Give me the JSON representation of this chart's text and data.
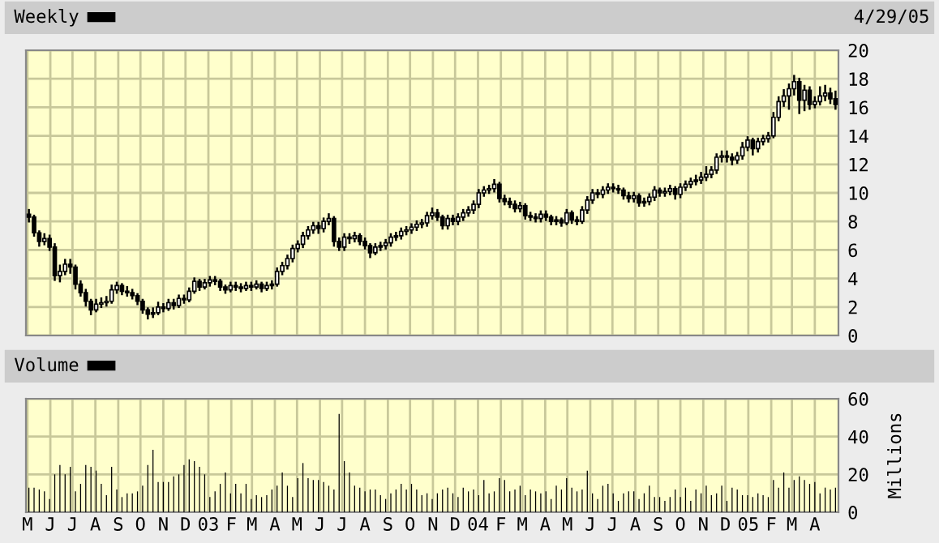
{
  "chart_data": [
    {
      "type": "candlestick",
      "title": "Weekly",
      "annotations": [
        "4/29/05"
      ],
      "color": "#000000",
      "grid": true,
      "tick_labels": "y",
      "xlim": [
        "2002-04-29",
        "2005-05-03"
      ],
      "ylim": [
        0,
        20
      ],
      "yticks": [
        0,
        2,
        4,
        6,
        8,
        10,
        12,
        14,
        16,
        18,
        20
      ],
      "xticks": [
        {
          "value": "2002-05-01",
          "label": null
        },
        {
          "value": "2002-06-01",
          "label": null
        },
        {
          "value": "2002-07-01",
          "label": null
        },
        {
          "value": "2002-08-01",
          "label": null
        },
        {
          "value": "2002-09-01",
          "label": null
        },
        {
          "value": "2002-10-01",
          "label": null
        },
        {
          "value": "2002-11-01",
          "label": null
        },
        {
          "value": "2002-12-01",
          "label": null
        },
        {
          "value": "2003-01-01",
          "label": null
        },
        {
          "value": "2003-02-01",
          "label": null
        },
        {
          "value": "2003-03-01",
          "label": null
        },
        {
          "value": "2003-04-01",
          "label": null
        },
        {
          "value": "2003-05-01",
          "label": null
        },
        {
          "value": "2003-06-01",
          "label": null
        },
        {
          "value": "2003-07-01",
          "label": null
        },
        {
          "value": "2003-08-01",
          "label": null
        },
        {
          "value": "2003-09-01",
          "label": null
        },
        {
          "value": "2003-10-01",
          "label": null
        },
        {
          "value": "2003-11-01",
          "label": null
        },
        {
          "value": "2003-12-01",
          "label": null
        },
        {
          "value": "2004-01-01",
          "label": null
        },
        {
          "value": "2004-02-01",
          "label": null
        },
        {
          "value": "2004-03-01",
          "label": null
        },
        {
          "value": "2004-04-01",
          "label": null
        },
        {
          "value": "2004-05-01",
          "label": null
        },
        {
          "value": "2004-06-01",
          "label": null
        },
        {
          "value": "2004-07-01",
          "label": null
        },
        {
          "value": "2004-08-01",
          "label": null
        },
        {
          "value": "2004-09-01",
          "label": null
        },
        {
          "value": "2004-10-01",
          "label": null
        },
        {
          "value": "2004-11-01",
          "label": null
        },
        {
          "value": "2004-12-01",
          "label": null
        },
        {
          "value": "2005-01-01",
          "label": null
        },
        {
          "value": "2005-02-01",
          "label": null
        },
        {
          "value": "2005-03-01",
          "label": null
        },
        {
          "value": "2005-04-01",
          "label": null
        }
      ],
      "x": [
        "2002-05-03",
        "2002-05-10",
        "2002-05-17",
        "2002-05-24",
        "2002-05-31",
        "2002-06-07",
        "2002-06-14",
        "2002-06-21",
        "2002-06-28",
        "2002-07-05",
        "2002-07-12",
        "2002-07-19",
        "2002-07-26",
        "2002-08-02",
        "2002-08-09",
        "2002-08-16",
        "2002-08-23",
        "2002-08-30",
        "2002-09-06",
        "2002-09-13",
        "2002-09-20",
        "2002-09-27",
        "2002-10-04",
        "2002-10-11",
        "2002-10-18",
        "2002-10-25",
        "2002-11-01",
        "2002-11-08",
        "2002-11-15",
        "2002-11-22",
        "2002-11-29",
        "2002-12-06",
        "2002-12-13",
        "2002-12-20",
        "2002-12-27",
        "2003-01-03",
        "2003-01-10",
        "2003-01-17",
        "2003-01-24",
        "2003-01-31",
        "2003-02-07",
        "2003-02-14",
        "2003-02-21",
        "2003-02-28",
        "2003-03-07",
        "2003-03-14",
        "2003-03-21",
        "2003-03-28",
        "2003-04-04",
        "2003-04-11",
        "2003-04-18",
        "2003-04-25",
        "2003-05-02",
        "2003-05-09",
        "2003-05-16",
        "2003-05-23",
        "2003-05-30",
        "2003-06-06",
        "2003-06-13",
        "2003-06-20",
        "2003-06-27",
        "2003-07-04",
        "2003-07-11",
        "2003-07-18",
        "2003-07-25",
        "2003-08-01",
        "2003-08-08",
        "2003-08-15",
        "2003-08-22",
        "2003-08-29",
        "2003-09-05",
        "2003-09-12",
        "2003-09-19",
        "2003-09-26",
        "2003-10-03",
        "2003-10-10",
        "2003-10-17",
        "2003-10-24",
        "2003-10-31",
        "2003-11-07",
        "2003-11-14",
        "2003-11-21",
        "2003-11-28",
        "2003-12-05",
        "2003-12-12",
        "2003-12-19",
        "2003-12-26",
        "2004-01-02",
        "2004-01-09",
        "2004-01-16",
        "2004-01-23",
        "2004-01-30",
        "2004-02-06",
        "2004-02-13",
        "2004-02-20",
        "2004-02-27",
        "2004-03-05",
        "2004-03-12",
        "2004-03-19",
        "2004-03-26",
        "2004-04-02",
        "2004-04-09",
        "2004-04-16",
        "2004-04-23",
        "2004-04-30",
        "2004-05-07",
        "2004-05-14",
        "2004-05-21",
        "2004-05-28",
        "2004-06-04",
        "2004-06-11",
        "2004-06-18",
        "2004-06-25",
        "2004-07-02",
        "2004-07-09",
        "2004-07-16",
        "2004-07-23",
        "2004-07-30",
        "2004-08-06",
        "2004-08-13",
        "2004-08-20",
        "2004-08-27",
        "2004-09-03",
        "2004-09-10",
        "2004-09-17",
        "2004-09-24",
        "2004-10-01",
        "2004-10-08",
        "2004-10-15",
        "2004-10-22",
        "2004-10-29",
        "2004-11-05",
        "2004-11-12",
        "2004-11-19",
        "2004-11-26",
        "2004-12-03",
        "2004-12-10",
        "2004-12-17",
        "2004-12-24",
        "2004-12-31",
        "2005-01-07",
        "2005-01-14",
        "2005-01-21",
        "2005-01-28",
        "2005-02-04",
        "2005-02-11",
        "2005-02-18",
        "2005-02-25",
        "2005-03-04",
        "2005-03-11",
        "2005-03-18",
        "2005-03-25",
        "2005-04-01",
        "2005-04-08",
        "2005-04-15",
        "2005-04-22",
        "2005-04-29"
      ],
      "ohlc": [
        [
          8.5,
          8.8,
          8.0,
          8.3
        ],
        [
          8.3,
          8.4,
          7.0,
          7.2
        ],
        [
          7.2,
          7.3,
          6.3,
          6.6
        ],
        [
          6.6,
          7.1,
          6.4,
          6.8
        ],
        [
          6.8,
          7.0,
          6.0,
          6.2
        ],
        [
          6.2,
          6.4,
          3.9,
          4.2
        ],
        [
          4.2,
          4.9,
          3.8,
          4.5
        ],
        [
          4.5,
          5.3,
          4.3,
          5.0
        ],
        [
          5.0,
          5.3,
          4.4,
          4.8
        ],
        [
          4.8,
          4.9,
          3.3,
          3.6
        ],
        [
          3.6,
          3.8,
          2.8,
          3.0
        ],
        [
          3.0,
          3.2,
          2.1,
          2.4
        ],
        [
          2.4,
          2.5,
          1.5,
          1.8
        ],
        [
          1.8,
          2.5,
          1.7,
          2.2
        ],
        [
          2.2,
          2.6,
          2.0,
          2.3
        ],
        [
          2.3,
          2.7,
          2.1,
          2.4
        ],
        [
          2.4,
          3.5,
          2.3,
          3.2
        ],
        [
          3.2,
          3.7,
          3.0,
          3.5
        ],
        [
          3.5,
          3.6,
          2.9,
          3.1
        ],
        [
          3.1,
          3.4,
          2.8,
          3.0
        ],
        [
          3.0,
          3.2,
          2.6,
          2.8
        ],
        [
          2.8,
          2.9,
          2.2,
          2.4
        ],
        [
          2.4,
          2.5,
          1.6,
          1.8
        ],
        [
          1.8,
          1.9,
          1.2,
          1.5
        ],
        [
          1.5,
          1.9,
          1.3,
          1.6
        ],
        [
          1.6,
          2.3,
          1.5,
          2.0
        ],
        [
          2.0,
          2.2,
          1.7,
          1.9
        ],
        [
          1.9,
          2.5,
          1.8,
          2.3
        ],
        [
          2.3,
          2.5,
          1.9,
          2.1
        ],
        [
          2.1,
          2.8,
          2.0,
          2.6
        ],
        [
          2.6,
          2.8,
          2.3,
          2.5
        ],
        [
          2.5,
          3.3,
          2.4,
          3.1
        ],
        [
          3.1,
          4.0,
          3.0,
          3.8
        ],
        [
          3.8,
          3.9,
          3.2,
          3.4
        ],
        [
          3.4,
          3.9,
          3.3,
          3.7
        ],
        [
          3.7,
          4.1,
          3.5,
          3.9
        ],
        [
          3.9,
          4.1,
          3.6,
          3.8
        ],
        [
          3.8,
          3.9,
          3.2,
          3.4
        ],
        [
          3.4,
          3.5,
          3.0,
          3.2
        ],
        [
          3.2,
          3.7,
          3.1,
          3.5
        ],
        [
          3.5,
          3.7,
          3.2,
          3.4
        ],
        [
          3.4,
          3.6,
          3.1,
          3.3
        ],
        [
          3.3,
          3.7,
          3.2,
          3.5
        ],
        [
          3.5,
          3.7,
          3.2,
          3.4
        ],
        [
          3.4,
          3.8,
          3.3,
          3.6
        ],
        [
          3.6,
          3.7,
          3.1,
          3.3
        ],
        [
          3.3,
          3.7,
          3.2,
          3.5
        ],
        [
          3.5,
          3.8,
          3.3,
          3.6
        ],
        [
          3.6,
          4.7,
          3.5,
          4.5
        ],
        [
          4.5,
          5.1,
          4.3,
          4.9
        ],
        [
          4.9,
          5.6,
          4.7,
          5.4
        ],
        [
          5.4,
          6.3,
          5.2,
          6.1
        ],
        [
          6.1,
          6.6,
          5.9,
          6.4
        ],
        [
          6.4,
          7.2,
          6.2,
          7.0
        ],
        [
          7.0,
          7.6,
          6.8,
          7.4
        ],
        [
          7.4,
          7.9,
          7.2,
          7.7
        ],
        [
          7.7,
          7.9,
          7.2,
          7.5
        ],
        [
          7.5,
          8.2,
          7.3,
          8.0
        ],
        [
          8.0,
          8.5,
          7.8,
          8.2
        ],
        [
          8.2,
          8.3,
          6.3,
          6.6
        ],
        [
          6.6,
          6.8,
          6.0,
          6.2
        ],
        [
          6.2,
          7.1,
          6.0,
          6.9
        ],
        [
          6.9,
          7.1,
          6.5,
          6.8
        ],
        [
          6.8,
          7.2,
          6.6,
          7.0
        ],
        [
          7.0,
          7.1,
          6.4,
          6.6
        ],
        [
          6.6,
          6.8,
          6.1,
          6.3
        ],
        [
          6.3,
          6.4,
          5.5,
          5.8
        ],
        [
          5.8,
          6.4,
          5.7,
          6.2
        ],
        [
          6.2,
          6.5,
          6.0,
          6.3
        ],
        [
          6.3,
          6.7,
          6.1,
          6.5
        ],
        [
          6.5,
          7.1,
          6.3,
          6.9
        ],
        [
          6.9,
          7.2,
          6.7,
          7.0
        ],
        [
          7.0,
          7.5,
          6.8,
          7.3
        ],
        [
          7.3,
          7.6,
          7.1,
          7.4
        ],
        [
          7.4,
          7.8,
          7.2,
          7.6
        ],
        [
          7.6,
          8.0,
          7.4,
          7.8
        ],
        [
          7.8,
          8.1,
          7.6,
          7.9
        ],
        [
          7.9,
          8.6,
          7.7,
          8.4
        ],
        [
          8.4,
          8.9,
          8.2,
          8.6
        ],
        [
          8.6,
          8.8,
          8.1,
          8.3
        ],
        [
          8.3,
          8.4,
          7.5,
          7.7
        ],
        [
          7.7,
          8.4,
          7.5,
          8.2
        ],
        [
          8.2,
          8.4,
          7.8,
          8.0
        ],
        [
          8.0,
          8.5,
          7.8,
          8.3
        ],
        [
          8.3,
          8.8,
          8.1,
          8.6
        ],
        [
          8.6,
          9.0,
          8.4,
          8.8
        ],
        [
          8.8,
          9.4,
          8.6,
          9.2
        ],
        [
          9.2,
          10.2,
          9.0,
          10.0
        ],
        [
          10.0,
          10.4,
          9.8,
          10.2
        ],
        [
          10.2,
          10.5,
          10.0,
          10.3
        ],
        [
          10.3,
          10.9,
          10.1,
          10.6
        ],
        [
          10.6,
          10.7,
          9.4,
          9.6
        ],
        [
          9.6,
          9.8,
          9.2,
          9.4
        ],
        [
          9.4,
          9.6,
          9.0,
          9.2
        ],
        [
          9.2,
          9.4,
          8.7,
          8.9
        ],
        [
          8.9,
          9.3,
          8.7,
          9.1
        ],
        [
          9.1,
          9.2,
          8.2,
          8.4
        ],
        [
          8.4,
          8.6,
          8.1,
          8.3
        ],
        [
          8.3,
          8.5,
          8.0,
          8.2
        ],
        [
          8.2,
          8.7,
          8.0,
          8.5
        ],
        [
          8.5,
          8.7,
          8.1,
          8.3
        ],
        [
          8.3,
          8.4,
          7.8,
          8.0
        ],
        [
          8.0,
          8.3,
          7.8,
          8.1
        ],
        [
          8.1,
          8.2,
          7.7,
          7.9
        ],
        [
          7.9,
          8.8,
          7.8,
          8.6
        ],
        [
          8.6,
          8.7,
          7.9,
          8.1
        ],
        [
          8.1,
          8.3,
          7.8,
          8.0
        ],
        [
          8.0,
          9.0,
          7.9,
          8.8
        ],
        [
          8.8,
          9.7,
          8.6,
          9.5
        ],
        [
          9.5,
          10.2,
          9.3,
          10.0
        ],
        [
          10.0,
          10.2,
          9.7,
          9.9
        ],
        [
          9.9,
          10.4,
          9.7,
          10.2
        ],
        [
          10.2,
          10.6,
          10.0,
          10.4
        ],
        [
          10.4,
          10.6,
          10.1,
          10.3
        ],
        [
          10.3,
          10.5,
          10.0,
          10.2
        ],
        [
          10.2,
          10.3,
          9.6,
          9.8
        ],
        [
          9.8,
          10.0,
          9.4,
          9.6
        ],
        [
          9.6,
          10.0,
          9.4,
          9.8
        ],
        [
          9.8,
          9.9,
          9.1,
          9.3
        ],
        [
          9.3,
          9.6,
          9.1,
          9.4
        ],
        [
          9.4,
          9.9,
          9.2,
          9.7
        ],
        [
          9.7,
          10.4,
          9.5,
          10.2
        ],
        [
          10.2,
          10.3,
          9.8,
          10.0
        ],
        [
          10.0,
          10.3,
          9.8,
          10.1
        ],
        [
          10.1,
          10.5,
          9.9,
          10.3
        ],
        [
          10.3,
          10.4,
          9.6,
          9.9
        ],
        [
          9.9,
          10.6,
          9.7,
          10.4
        ],
        [
          10.4,
          10.8,
          10.2,
          10.6
        ],
        [
          10.6,
          11.0,
          10.4,
          10.8
        ],
        [
          10.8,
          11.2,
          10.6,
          10.9
        ],
        [
          10.9,
          11.4,
          10.7,
          11.1
        ],
        [
          11.1,
          11.8,
          10.9,
          11.3
        ],
        [
          11.3,
          11.8,
          11.1,
          11.6
        ],
        [
          11.6,
          12.7,
          11.4,
          12.5
        ],
        [
          12.5,
          12.9,
          12.2,
          12.6
        ],
        [
          12.6,
          12.9,
          12.2,
          12.5
        ],
        [
          12.5,
          12.7,
          12.0,
          12.3
        ],
        [
          12.3,
          12.8,
          12.1,
          12.6
        ],
        [
          12.6,
          13.5,
          12.4,
          13.2
        ],
        [
          13.2,
          13.9,
          13.0,
          13.7
        ],
        [
          13.7,
          13.8,
          12.7,
          13.1
        ],
        [
          13.1,
          13.8,
          12.9,
          13.6
        ],
        [
          13.6,
          14.0,
          13.4,
          13.8
        ],
        [
          13.8,
          14.2,
          13.6,
          14.0
        ],
        [
          14.0,
          15.6,
          13.9,
          15.3
        ],
        [
          15.3,
          16.7,
          15.1,
          16.4
        ],
        [
          16.4,
          17.2,
          16.1,
          16.8
        ],
        [
          16.8,
          17.6,
          15.9,
          17.3
        ],
        [
          17.3,
          18.2,
          16.9,
          17.8
        ],
        [
          17.8,
          18.0,
          15.6,
          16.5
        ],
        [
          16.5,
          17.5,
          15.8,
          17.2
        ],
        [
          17.2,
          17.4,
          15.9,
          16.2
        ],
        [
          16.2,
          16.7,
          16.0,
          16.4
        ],
        [
          16.4,
          17.4,
          16.2,
          16.8
        ],
        [
          16.8,
          17.5,
          16.5,
          17.0
        ],
        [
          17.0,
          17.3,
          16.3,
          16.6
        ],
        [
          16.6,
          17.1,
          15.9,
          16.2
        ]
      ]
    },
    {
      "type": "bar",
      "title": "Volume",
      "ylabel": "Millions",
      "color": "#000000",
      "grid": true,
      "xlim": [
        "2002-04-29",
        "2005-05-03"
      ],
      "ylim": [
        0,
        60
      ],
      "yticks": [
        0,
        20,
        40,
        60
      ],
      "xticks": [
        {
          "value": "2002-05-01",
          "label": "M"
        },
        {
          "value": "2002-06-01",
          "label": "J"
        },
        {
          "value": "2002-07-01",
          "label": "J"
        },
        {
          "value": "2002-08-01",
          "label": "A"
        },
        {
          "value": "2002-09-01",
          "label": "S"
        },
        {
          "value": "2002-10-01",
          "label": "O"
        },
        {
          "value": "2002-11-01",
          "label": "N"
        },
        {
          "value": "2002-12-01",
          "label": "D"
        },
        {
          "value": "2003-01-01",
          "label": "03"
        },
        {
          "value": "2003-02-01",
          "label": "F"
        },
        {
          "value": "2003-03-01",
          "label": "M"
        },
        {
          "value": "2003-04-01",
          "label": "A"
        },
        {
          "value": "2003-05-01",
          "label": "M"
        },
        {
          "value": "2003-06-01",
          "label": "J"
        },
        {
          "value": "2003-07-01",
          "label": "J"
        },
        {
          "value": "2003-08-01",
          "label": "A"
        },
        {
          "value": "2003-09-01",
          "label": "S"
        },
        {
          "value": "2003-10-01",
          "label": "O"
        },
        {
          "value": "2003-11-01",
          "label": "N"
        },
        {
          "value": "2003-12-01",
          "label": "D"
        },
        {
          "value": "2004-01-01",
          "label": "04"
        },
        {
          "value": "2004-02-01",
          "label": "F"
        },
        {
          "value": "2004-03-01",
          "label": "M"
        },
        {
          "value": "2004-04-01",
          "label": "A"
        },
        {
          "value": "2004-05-01",
          "label": "M"
        },
        {
          "value": "2004-06-01",
          "label": "J"
        },
        {
          "value": "2004-07-01",
          "label": "J"
        },
        {
          "value": "2004-08-01",
          "label": "A"
        },
        {
          "value": "2004-09-01",
          "label": "S"
        },
        {
          "value": "2004-10-01",
          "label": "O"
        },
        {
          "value": "2004-11-01",
          "label": "N"
        },
        {
          "value": "2004-12-01",
          "label": "D"
        },
        {
          "value": "2005-01-01",
          "label": "05"
        },
        {
          "value": "2005-02-01",
          "label": "F"
        },
        {
          "value": "2005-03-01",
          "label": "M"
        },
        {
          "value": "2005-04-01",
          "label": "A"
        }
      ],
      "x": [
        "2002-05-03",
        "2002-05-10",
        "2002-05-17",
        "2002-05-24",
        "2002-05-31",
        "2002-06-07",
        "2002-06-14",
        "2002-06-21",
        "2002-06-28",
        "2002-07-05",
        "2002-07-12",
        "2002-07-19",
        "2002-07-26",
        "2002-08-02",
        "2002-08-09",
        "2002-08-16",
        "2002-08-23",
        "2002-08-30",
        "2002-09-06",
        "2002-09-13",
        "2002-09-20",
        "2002-09-27",
        "2002-10-04",
        "2002-10-11",
        "2002-10-18",
        "2002-10-25",
        "2002-11-01",
        "2002-11-08",
        "2002-11-15",
        "2002-11-22",
        "2002-11-29",
        "2002-12-06",
        "2002-12-13",
        "2002-12-20",
        "2002-12-27",
        "2003-01-03",
        "2003-01-10",
        "2003-01-17",
        "2003-01-24",
        "2003-01-31",
        "2003-02-07",
        "2003-02-14",
        "2003-02-21",
        "2003-02-28",
        "2003-03-07",
        "2003-03-14",
        "2003-03-21",
        "2003-03-28",
        "2003-04-04",
        "2003-04-11",
        "2003-04-18",
        "2003-04-25",
        "2003-05-02",
        "2003-05-09",
        "2003-05-16",
        "2003-05-23",
        "2003-05-30",
        "2003-06-06",
        "2003-06-13",
        "2003-06-20",
        "2003-06-27",
        "2003-07-04",
        "2003-07-11",
        "2003-07-18",
        "2003-07-25",
        "2003-08-01",
        "2003-08-08",
        "2003-08-15",
        "2003-08-22",
        "2003-08-29",
        "2003-09-05",
        "2003-09-12",
        "2003-09-19",
        "2003-09-26",
        "2003-10-03",
        "2003-10-10",
        "2003-10-17",
        "2003-10-24",
        "2003-10-31",
        "2003-11-07",
        "2003-11-14",
        "2003-11-21",
        "2003-11-28",
        "2003-12-05",
        "2003-12-12",
        "2003-12-19",
        "2003-12-26",
        "2004-01-02",
        "2004-01-09",
        "2004-01-16",
        "2004-01-23",
        "2004-01-30",
        "2004-02-06",
        "2004-02-13",
        "2004-02-20",
        "2004-02-27",
        "2004-03-05",
        "2004-03-12",
        "2004-03-19",
        "2004-03-26",
        "2004-04-02",
        "2004-04-09",
        "2004-04-16",
        "2004-04-23",
        "2004-04-30",
        "2004-05-07",
        "2004-05-14",
        "2004-05-21",
        "2004-05-28",
        "2004-06-04",
        "2004-06-11",
        "2004-06-18",
        "2004-06-25",
        "2004-07-02",
        "2004-07-09",
        "2004-07-16",
        "2004-07-23",
        "2004-07-30",
        "2004-08-06",
        "2004-08-13",
        "2004-08-20",
        "2004-08-27",
        "2004-09-03",
        "2004-09-10",
        "2004-09-17",
        "2004-09-24",
        "2004-10-01",
        "2004-10-08",
        "2004-10-15",
        "2004-10-22",
        "2004-10-29",
        "2004-11-05",
        "2004-11-12",
        "2004-11-19",
        "2004-11-26",
        "2004-12-03",
        "2004-12-10",
        "2004-12-17",
        "2004-12-24",
        "2004-12-31",
        "2005-01-07",
        "2005-01-14",
        "2005-01-21",
        "2005-01-28",
        "2005-02-04",
        "2005-02-11",
        "2005-02-18",
        "2005-02-25",
        "2005-03-04",
        "2005-03-11",
        "2005-03-18",
        "2005-03-25",
        "2005-04-01",
        "2005-04-08",
        "2005-04-15",
        "2005-04-22",
        "2005-04-29"
      ],
      "values": [
        13,
        13,
        12,
        11,
        7,
        20,
        25,
        20,
        24,
        11,
        15,
        25,
        24,
        22,
        15,
        9,
        24,
        12,
        8,
        10,
        10,
        11,
        14,
        25,
        33,
        16,
        16,
        16,
        19,
        20,
        25,
        28,
        27,
        24,
        20,
        8,
        11,
        15,
        21,
        10,
        15,
        10,
        15,
        7,
        9,
        8,
        9,
        12,
        14,
        21,
        14,
        8,
        18,
        26,
        18,
        17,
        17,
        16,
        14,
        12,
        52,
        27,
        21,
        14,
        13,
        11,
        12,
        12,
        9,
        7,
        10,
        12,
        15,
        12,
        15,
        12,
        9,
        10,
        7,
        10,
        12,
        13,
        10,
        8,
        13,
        11,
        12,
        9,
        17,
        10,
        11,
        18,
        17,
        11,
        12,
        14,
        9,
        12,
        11,
        10,
        11,
        7,
        14,
        12,
        18,
        13,
        11,
        12,
        22,
        10,
        7,
        14,
        15,
        10,
        6,
        10,
        11,
        11,
        7,
        10,
        14,
        8,
        8,
        6,
        8,
        12,
        8,
        13,
        6,
        12,
        10,
        14,
        9,
        10,
        14,
        6,
        13,
        12,
        9,
        9,
        8,
        10,
        9,
        8,
        17,
        13,
        21,
        13,
        17,
        19,
        17,
        15,
        16,
        10,
        13,
        12,
        13
      ]
    }
  ]
}
